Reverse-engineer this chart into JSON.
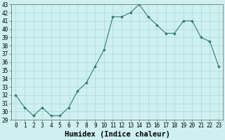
{
  "xlabel": "Humidex (Indice chaleur)",
  "x": [
    0,
    1,
    2,
    3,
    4,
    5,
    6,
    7,
    8,
    9,
    10,
    11,
    12,
    13,
    14,
    15,
    16,
    17,
    18,
    19,
    20,
    21,
    22,
    23
  ],
  "y": [
    32,
    30.5,
    29.5,
    30.5,
    29.5,
    29.5,
    30.5,
    32.5,
    33.5,
    35.5,
    37.5,
    41.5,
    41.5,
    42,
    43,
    41.5,
    40.5,
    39.5,
    39.5,
    41,
    41,
    39,
    38.5,
    35.5
  ],
  "line_color": "#2e7d6e",
  "marker": "D",
  "marker_size": 2.0,
  "bg_color": "#cff0f0",
  "grid_color": "#aadada",
  "ylim": [
    29,
    43
  ],
  "yticks": [
    29,
    30,
    31,
    32,
    33,
    34,
    35,
    36,
    37,
    38,
    39,
    40,
    41,
    42,
    43
  ],
  "xticks": [
    0,
    1,
    2,
    3,
    4,
    5,
    6,
    7,
    8,
    9,
    10,
    11,
    12,
    13,
    14,
    15,
    16,
    17,
    18,
    19,
    20,
    21,
    22,
    23
  ],
  "tick_fontsize": 5.5,
  "xlabel_fontsize": 7.5,
  "line_width": 0.8
}
